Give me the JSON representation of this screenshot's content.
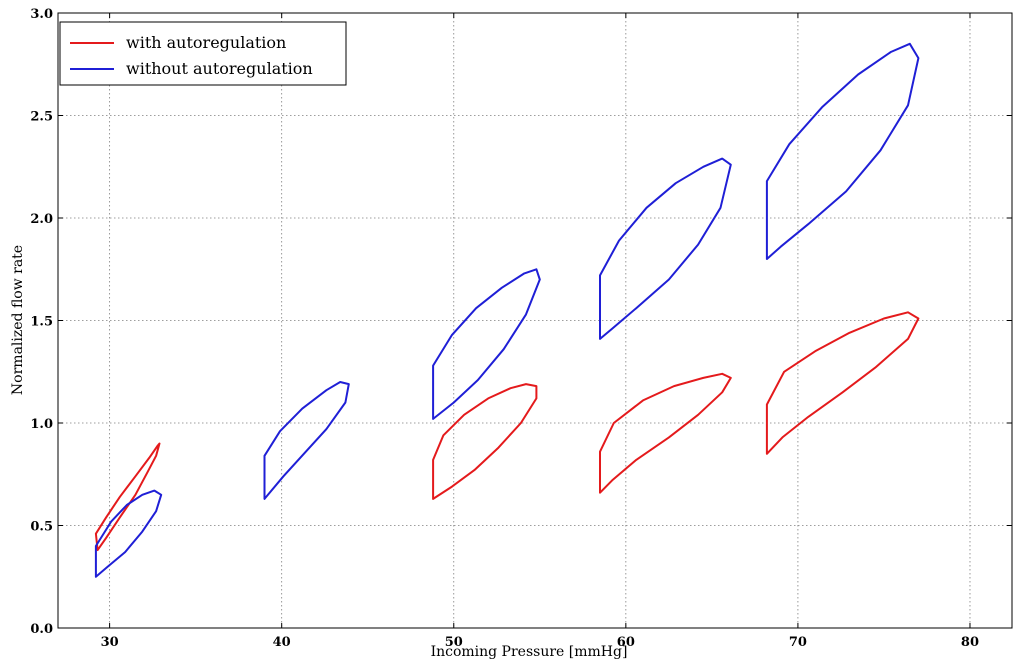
{
  "chart_data": {
    "type": "line",
    "title": "",
    "xlabel": "Incoming Pressure [mmHg]",
    "ylabel": "Normalized flow rate",
    "xlim": [
      27,
      82.5
    ],
    "ylim": [
      0,
      3.0
    ],
    "xticks": [
      30,
      40,
      50,
      60,
      70,
      80
    ],
    "yticks": [
      0.0,
      0.5,
      1.0,
      1.5,
      2.0,
      2.5,
      3.0
    ],
    "xtick_labels": [
      "30",
      "40",
      "50",
      "60",
      "70",
      "80"
    ],
    "ytick_labels": [
      "0.0",
      "0.5",
      "1.0",
      "1.5",
      "2.0",
      "2.5",
      "3.0"
    ],
    "grid": true,
    "legend_position": "top-left",
    "series": [
      {
        "name": "with autoregulation",
        "color": "#e41a1c",
        "loops": [
          [
            [
              29.2,
              0.46
            ],
            [
              29.8,
              0.54
            ],
            [
              30.6,
              0.64
            ],
            [
              31.5,
              0.74
            ],
            [
              32.3,
              0.83
            ],
            [
              32.8,
              0.89
            ],
            [
              32.9,
              0.9
            ],
            [
              32.7,
              0.84
            ],
            [
              32.2,
              0.76
            ],
            [
              31.5,
              0.65
            ],
            [
              30.6,
              0.54
            ],
            [
              29.8,
              0.44
            ],
            [
              29.3,
              0.38
            ],
            [
              29.2,
              0.46
            ]
          ],
          [
            [
              48.8,
              0.82
            ],
            [
              49.4,
              0.94
            ],
            [
              50.6,
              1.04
            ],
            [
              52.0,
              1.12
            ],
            [
              53.3,
              1.17
            ],
            [
              54.2,
              1.19
            ],
            [
              54.8,
              1.18
            ],
            [
              54.8,
              1.12
            ],
            [
              53.9,
              1.0
            ],
            [
              52.6,
              0.88
            ],
            [
              51.2,
              0.77
            ],
            [
              49.9,
              0.69
            ],
            [
              48.8,
              0.63
            ],
            [
              48.8,
              0.82
            ]
          ],
          [
            [
              58.5,
              0.86
            ],
            [
              59.3,
              1.0
            ],
            [
              61.0,
              1.11
            ],
            [
              62.8,
              1.18
            ],
            [
              64.5,
              1.22
            ],
            [
              65.6,
              1.24
            ],
            [
              66.1,
              1.22
            ],
            [
              65.6,
              1.15
            ],
            [
              64.2,
              1.04
            ],
            [
              62.5,
              0.93
            ],
            [
              60.6,
              0.82
            ],
            [
              59.2,
              0.72
            ],
            [
              58.5,
              0.66
            ],
            [
              58.5,
              0.86
            ]
          ],
          [
            [
              68.2,
              1.09
            ],
            [
              69.2,
              1.25
            ],
            [
              71.0,
              1.35
            ],
            [
              73.0,
              1.44
            ],
            [
              75.0,
              1.51
            ],
            [
              76.4,
              1.54
            ],
            [
              77.0,
              1.51
            ],
            [
              76.4,
              1.41
            ],
            [
              74.5,
              1.27
            ],
            [
              72.6,
              1.15
            ],
            [
              70.6,
              1.03
            ],
            [
              69.1,
              0.93
            ],
            [
              68.2,
              0.85
            ],
            [
              68.2,
              1.09
            ]
          ]
        ]
      },
      {
        "name": "without autoregulation",
        "color": "#1f1fd6",
        "loops": [
          [
            [
              29.2,
              0.4
            ],
            [
              30.1,
              0.52
            ],
            [
              31.0,
              0.6
            ],
            [
              31.9,
              0.65
            ],
            [
              32.6,
              0.67
            ],
            [
              33.0,
              0.65
            ],
            [
              32.7,
              0.57
            ],
            [
              31.9,
              0.47
            ],
            [
              30.9,
              0.37
            ],
            [
              29.9,
              0.3
            ],
            [
              29.2,
              0.25
            ],
            [
              29.2,
              0.4
            ]
          ],
          [
            [
              39.0,
              0.84
            ],
            [
              39.9,
              0.96
            ],
            [
              41.2,
              1.07
            ],
            [
              42.6,
              1.16
            ],
            [
              43.4,
              1.2
            ],
            [
              43.9,
              1.19
            ],
            [
              43.7,
              1.1
            ],
            [
              42.6,
              0.97
            ],
            [
              41.4,
              0.86
            ],
            [
              40.1,
              0.74
            ],
            [
              39.0,
              0.63
            ],
            [
              39.0,
              0.84
            ]
          ],
          [
            [
              48.8,
              1.28
            ],
            [
              49.9,
              1.43
            ],
            [
              51.3,
              1.56
            ],
            [
              52.8,
              1.66
            ],
            [
              54.1,
              1.73
            ],
            [
              54.8,
              1.75
            ],
            [
              55.0,
              1.7
            ],
            [
              54.2,
              1.53
            ],
            [
              52.9,
              1.36
            ],
            [
              51.4,
              1.21
            ],
            [
              50.0,
              1.1
            ],
            [
              48.8,
              1.02
            ],
            [
              48.8,
              1.28
            ]
          ],
          [
            [
              58.5,
              1.72
            ],
            [
              59.6,
              1.89
            ],
            [
              61.2,
              2.05
            ],
            [
              62.9,
              2.17
            ],
            [
              64.5,
              2.25
            ],
            [
              65.6,
              2.29
            ],
            [
              66.1,
              2.26
            ],
            [
              65.5,
              2.05
            ],
            [
              64.2,
              1.87
            ],
            [
              62.5,
              1.7
            ],
            [
              60.6,
              1.56
            ],
            [
              59.2,
              1.46
            ],
            [
              58.5,
              1.41
            ],
            [
              58.5,
              1.72
            ]
          ],
          [
            [
              68.2,
              2.18
            ],
            [
              69.5,
              2.36
            ],
            [
              71.4,
              2.54
            ],
            [
              73.5,
              2.7
            ],
            [
              75.4,
              2.81
            ],
            [
              76.5,
              2.85
            ],
            [
              77.0,
              2.78
            ],
            [
              76.4,
              2.55
            ],
            [
              74.8,
              2.33
            ],
            [
              72.8,
              2.13
            ],
            [
              70.6,
              1.97
            ],
            [
              69.0,
              1.86
            ],
            [
              68.2,
              1.8
            ],
            [
              68.2,
              2.18
            ]
          ]
        ]
      }
    ]
  }
}
